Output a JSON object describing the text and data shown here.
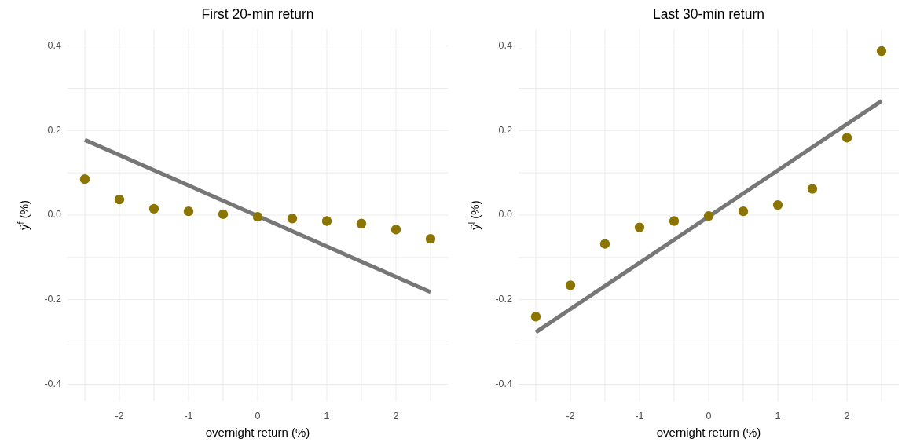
{
  "chart_data": [
    {
      "type": "scatter",
      "title": "First 20-min return",
      "xlabel": "overnight return (%)",
      "ylabel": "ŷ$^{f}$ (%)",
      "xlim": [
        -2.75,
        2.75
      ],
      "ylim": [
        -0.44,
        0.44
      ],
      "xticks": [
        {
          "value": -2.5,
          "label": null
        },
        -2,
        {
          "value": -1.5,
          "label": null
        },
        -1,
        {
          "value": -0.5,
          "label": null
        },
        0,
        {
          "value": 0.5,
          "label": null
        },
        1,
        {
          "value": 1.5,
          "label": null
        },
        2,
        {
          "value": 2.5,
          "label": null
        }
      ],
      "yticks": [
        -0.4,
        {
          "value": -0.3,
          "label": null
        },
        -0.2,
        {
          "value": -0.1,
          "label": null
        },
        {
          "value": 0,
          "label": "0.0"
        },
        {
          "value": 0.1,
          "label": null
        },
        0.2,
        {
          "value": 0.3,
          "label": null
        },
        0.4
      ],
      "grid": true,
      "series": [
        {
          "type": "line",
          "color": "#777777",
          "x": [
            -2.5,
            2.5
          ],
          "values": [
            0.178,
            -0.182
          ]
        },
        {
          "type": "scatter",
          "marker": "circle",
          "color": "#8b7500",
          "x": [
            -2.5,
            -2,
            -1.5,
            -1,
            -0.5,
            0,
            0.5,
            1,
            1.5,
            2,
            2.5
          ],
          "values": [
            0.085,
            0.037,
            0.015,
            0.009,
            0.002,
            -0.004,
            -0.008,
            -0.014,
            -0.02,
            -0.034,
            -0.056
          ]
        }
      ]
    },
    {
      "type": "scatter",
      "title": "Last 30-min return",
      "xlabel": "overnight return (%)",
      "ylabel": "ŷ$^{l}$ (%)",
      "xlim": [
        -2.75,
        2.75
      ],
      "ylim": [
        -0.44,
        0.44
      ],
      "xticks": [
        {
          "value": -2.5,
          "label": null
        },
        -2,
        {
          "value": -1.5,
          "label": null
        },
        -1,
        {
          "value": -0.5,
          "label": null
        },
        0,
        {
          "value": 0.5,
          "label": null
        },
        1,
        {
          "value": 1.5,
          "label": null
        },
        2,
        {
          "value": 2.5,
          "label": null
        }
      ],
      "yticks": [
        -0.4,
        {
          "value": -0.3,
          "label": null
        },
        -0.2,
        {
          "value": -0.1,
          "label": null
        },
        {
          "value": 0,
          "label": "0.0"
        },
        {
          "value": 0.1,
          "label": null
        },
        0.2,
        {
          "value": 0.3,
          "label": null
        },
        0.4
      ],
      "grid": true,
      "series": [
        {
          "type": "line",
          "color": "#777777",
          "x": [
            -2.5,
            2.5
          ],
          "values": [
            -0.277,
            0.27
          ]
        },
        {
          "type": "scatter",
          "marker": "circle",
          "color": "#8b7500",
          "x": [
            -2.5,
            -2,
            -1.5,
            -1,
            -0.5,
            0,
            0.5,
            1,
            1.5,
            2,
            2.5
          ],
          "values": [
            -0.24,
            -0.166,
            -0.068,
            -0.029,
            -0.014,
            -0.002,
            0.009,
            0.024,
            0.062,
            0.183,
            0.388
          ]
        }
      ]
    }
  ]
}
